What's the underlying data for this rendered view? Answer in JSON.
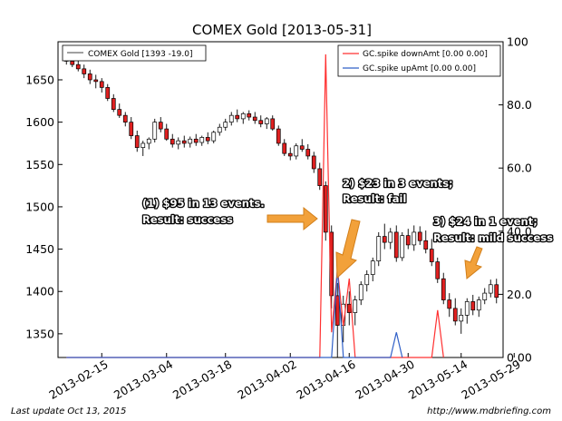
{
  "chart_data": {
    "type": "candlestick",
    "title": "COMEX Gold  [2013-05-31]",
    "x_ticks": [
      "2013-02-15",
      "2013-03-04",
      "2013-03-18",
      "2013-04-02",
      "2013-04-16",
      "2013-04-30",
      "2013-05-14",
      "2013-05-29"
    ],
    "y_left_ticks": [
      "1650",
      "1600",
      "1550",
      "1500",
      "1450",
      "1400",
      "1350"
    ],
    "y_right_ticks": [
      "100",
      "80.0",
      "60.0",
      "40.0",
      "20.0",
      "0.00"
    ],
    "ylim_left": [
      1322,
      1695
    ],
    "ylim_right": [
      0,
      100
    ],
    "price_legend": "COMEX Gold [1393 -19.0]",
    "spike_legend": [
      {
        "name": "GC.spike downAmt [0.00 0.00]",
        "color": "#ff3030"
      },
      {
        "name": "GC.spike upAmt [0.00 0.00]",
        "color": "#3060c8"
      }
    ],
    "annotations": [
      {
        "line1": "(1) $95 in 13 events.",
        "line2": "Result: success"
      },
      {
        "line1": "2) $23 in 3 events;",
        "line2": "Result: fail"
      },
      {
        "line1": "3) $24 in 1 event;",
        "line2": "Result: mild success"
      }
    ],
    "ohlc": [
      [
        1675,
        1680,
        1668,
        1672
      ],
      [
        1672,
        1678,
        1665,
        1668
      ],
      [
        1668,
        1675,
        1660,
        1663
      ],
      [
        1663,
        1668,
        1652,
        1657
      ],
      [
        1657,
        1662,
        1645,
        1650
      ],
      [
        1650,
        1656,
        1640,
        1648
      ],
      [
        1648,
        1652,
        1635,
        1641
      ],
      [
        1641,
        1645,
        1625,
        1628
      ],
      [
        1628,
        1633,
        1612,
        1615
      ],
      [
        1615,
        1622,
        1605,
        1608
      ],
      [
        1608,
        1612,
        1595,
        1600
      ],
      [
        1600,
        1606,
        1580,
        1584
      ],
      [
        1584,
        1590,
        1565,
        1570
      ],
      [
        1570,
        1578,
        1560,
        1575
      ],
      [
        1575,
        1582,
        1568,
        1580
      ],
      [
        1580,
        1604,
        1576,
        1600
      ],
      [
        1600,
        1606,
        1588,
        1592
      ],
      [
        1592,
        1598,
        1578,
        1580
      ],
      [
        1580,
        1586,
        1570,
        1574
      ],
      [
        1574,
        1582,
        1568,
        1578
      ],
      [
        1578,
        1584,
        1570,
        1575
      ],
      [
        1575,
        1583,
        1570,
        1580
      ],
      [
        1580,
        1586,
        1572,
        1576
      ],
      [
        1576,
        1584,
        1572,
        1582
      ],
      [
        1582,
        1588,
        1574,
        1578
      ],
      [
        1578,
        1590,
        1575,
        1588
      ],
      [
        1588,
        1598,
        1584,
        1594
      ],
      [
        1594,
        1604,
        1590,
        1600
      ],
      [
        1600,
        1612,
        1596,
        1608
      ],
      [
        1608,
        1615,
        1600,
        1604
      ],
      [
        1604,
        1612,
        1598,
        1610
      ],
      [
        1610,
        1614,
        1602,
        1606
      ],
      [
        1606,
        1612,
        1598,
        1602
      ],
      [
        1602,
        1608,
        1594,
        1598
      ],
      [
        1598,
        1606,
        1592,
        1604
      ],
      [
        1604,
        1608,
        1590,
        1592
      ],
      [
        1592,
        1596,
        1572,
        1575
      ],
      [
        1575,
        1580,
        1560,
        1563
      ],
      [
        1563,
        1570,
        1555,
        1560
      ],
      [
        1560,
        1575,
        1556,
        1572
      ],
      [
        1572,
        1580,
        1565,
        1568
      ],
      [
        1568,
        1574,
        1556,
        1560
      ],
      [
        1560,
        1565,
        1540,
        1545
      ],
      [
        1545,
        1552,
        1520,
        1525
      ],
      [
        1525,
        1530,
        1460,
        1470
      ],
      [
        1470,
        1478,
        1380,
        1395
      ],
      [
        1395,
        1410,
        1322,
        1360
      ],
      [
        1360,
        1395,
        1340,
        1385
      ],
      [
        1385,
        1400,
        1360,
        1375
      ],
      [
        1375,
        1395,
        1360,
        1390
      ],
      [
        1390,
        1412,
        1384,
        1408
      ],
      [
        1408,
        1425,
        1400,
        1420
      ],
      [
        1420,
        1440,
        1412,
        1436
      ],
      [
        1436,
        1470,
        1430,
        1465
      ],
      [
        1465,
        1480,
        1450,
        1458
      ],
      [
        1458,
        1475,
        1450,
        1470
      ],
      [
        1470,
        1478,
        1435,
        1440
      ],
      [
        1440,
        1470,
        1436,
        1466
      ],
      [
        1466,
        1474,
        1450,
        1455
      ],
      [
        1455,
        1478,
        1448,
        1470
      ],
      [
        1470,
        1477,
        1455,
        1460
      ],
      [
        1460,
        1472,
        1445,
        1450
      ],
      [
        1450,
        1462,
        1430,
        1435
      ],
      [
        1435,
        1440,
        1410,
        1415
      ],
      [
        1415,
        1422,
        1385,
        1390
      ],
      [
        1390,
        1398,
        1370,
        1380
      ],
      [
        1380,
        1392,
        1360,
        1365
      ],
      [
        1365,
        1380,
        1350,
        1372
      ],
      [
        1372,
        1392,
        1362,
        1388
      ],
      [
        1388,
        1396,
        1372,
        1378
      ],
      [
        1378,
        1394,
        1370,
        1390
      ],
      [
        1390,
        1404,
        1385,
        1398
      ],
      [
        1398,
        1414,
        1393,
        1408
      ],
      [
        1408,
        1415,
        1386,
        1393
      ]
    ],
    "spike_down": [
      [
        0,
        0
      ],
      [
        43,
        0
      ],
      [
        44,
        96
      ],
      [
        45,
        8
      ],
      [
        46,
        28
      ],
      [
        47,
        10
      ],
      [
        48,
        25
      ],
      [
        49,
        0
      ],
      [
        62,
        0
      ],
      [
        63,
        15
      ],
      [
        64,
        0
      ]
    ],
    "spike_up": [
      [
        0,
        0
      ],
      [
        45,
        0
      ],
      [
        46,
        28
      ],
      [
        47,
        0
      ],
      [
        55,
        0
      ],
      [
        56,
        8
      ],
      [
        57,
        0
      ]
    ]
  },
  "footer": {
    "left": "Last update Oct 13, 2015",
    "right": "http://www.mdbriefing.com"
  }
}
